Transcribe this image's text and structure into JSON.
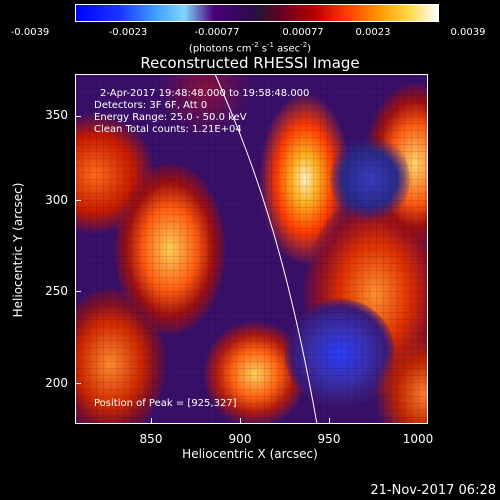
{
  "colorbar": {
    "ticks": [
      "-0.0039",
      "-0.0023",
      "-0.00077",
      "0.00077",
      "0.0023",
      "0.0039"
    ],
    "units_prefix": "(photons cm",
    "units_exp1": "-2",
    "units_mid": " s",
    "units_exp2": "-1",
    "units_mid2": " asec",
    "units_exp3": "-2",
    "units_suffix": ")"
  },
  "title": "Reconstructed RHESSI Image",
  "info": {
    "time_range": "2-Apr-2017 19:48:48.000 to 19:58:48.000",
    "detectors": "Detectors: 3F 6F, Att 0",
    "energy": "Energy Range: 25.0 - 50.0 keV",
    "clean": "Clean    Total counts: 1.21E+04",
    "peak": "Position of Peak = [925,327]"
  },
  "axes": {
    "xlabel": "Heliocentric X (arcsec)",
    "ylabel": "Heliocentric Y (arcsec)",
    "xticks": [
      "850",
      "900",
      "950",
      "1000"
    ],
    "yticks": [
      "350",
      "300",
      "250",
      "200"
    ]
  },
  "datestamp": "21-Nov-2017 06:28"
}
